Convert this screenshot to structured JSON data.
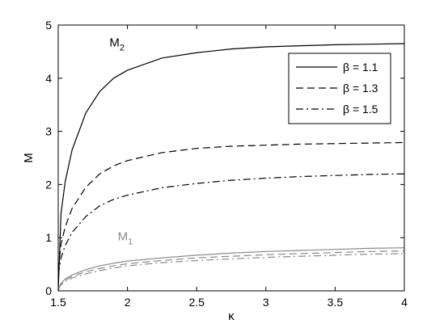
{
  "chart_data": {
    "type": "line",
    "xlabel": "κ",
    "ylabel": "M",
    "xlim": [
      1.5,
      4
    ],
    "ylim": [
      0,
      5
    ],
    "xticks": [
      "1.5",
      "2",
      "2.5",
      "3",
      "3.5",
      "4"
    ],
    "yticks": [
      "0",
      "1",
      "2",
      "3",
      "4",
      "5"
    ],
    "grid": false,
    "legend_position": "top-right",
    "x": [
      1.5,
      1.52,
      1.55,
      1.6,
      1.7,
      1.8,
      1.9,
      2.0,
      2.25,
      2.5,
      2.75,
      3.0,
      3.25,
      3.5,
      3.75,
      4.0
    ],
    "series": [
      {
        "name": "β = 1.1",
        "group": "M2",
        "color": "#000000",
        "dash": "solid",
        "values": [
          0.0,
          1.45,
          2.05,
          2.65,
          3.35,
          3.75,
          4.0,
          4.15,
          4.38,
          4.48,
          4.55,
          4.59,
          4.61,
          4.63,
          4.64,
          4.65
        ]
      },
      {
        "name": "β = 1.3",
        "group": "M2",
        "color": "#000000",
        "dash": "dashed",
        "values": [
          0.4,
          0.87,
          1.2,
          1.55,
          1.95,
          2.2,
          2.35,
          2.45,
          2.6,
          2.68,
          2.72,
          2.74,
          2.76,
          2.77,
          2.78,
          2.79
        ]
      },
      {
        "name": "β = 1.5",
        "group": "M2",
        "color": "#000000",
        "dash": "dashdot",
        "values": [
          0.3,
          0.62,
          0.85,
          1.1,
          1.4,
          1.6,
          1.72,
          1.8,
          1.94,
          2.02,
          2.08,
          2.12,
          2.15,
          2.17,
          2.19,
          2.2
        ]
      },
      {
        "name": "β = 1.1",
        "group": "M1",
        "color": "#8a8a8a",
        "dash": "solid",
        "values": [
          0.0,
          0.14,
          0.22,
          0.3,
          0.4,
          0.47,
          0.52,
          0.56,
          0.62,
          0.67,
          0.71,
          0.74,
          0.76,
          0.78,
          0.8,
          0.81
        ]
      },
      {
        "name": "β = 1.3",
        "group": "M1",
        "color": "#8a8a8a",
        "dash": "dashed",
        "values": [
          0.05,
          0.13,
          0.2,
          0.27,
          0.36,
          0.42,
          0.47,
          0.51,
          0.57,
          0.62,
          0.65,
          0.68,
          0.7,
          0.72,
          0.74,
          0.75
        ]
      },
      {
        "name": "β = 1.5",
        "group": "M1",
        "color": "#8a8a8a",
        "dash": "dashdot",
        "values": [
          0.04,
          0.11,
          0.17,
          0.24,
          0.32,
          0.38,
          0.43,
          0.47,
          0.53,
          0.57,
          0.6,
          0.63,
          0.65,
          0.67,
          0.69,
          0.7
        ]
      }
    ],
    "legend": [
      {
        "label": "β = 1.1",
        "dash": "solid"
      },
      {
        "label": "β = 1.3",
        "dash": "dashed"
      },
      {
        "label": "β = 1.5",
        "dash": "dashdot"
      }
    ],
    "annotations": [
      {
        "text": "M",
        "sub": "2",
        "x": 1.87,
        "y": 4.6,
        "color": "#000000"
      },
      {
        "text": "M",
        "sub": "1",
        "x": 1.93,
        "y": 0.95,
        "color": "#8a8a8a"
      }
    ]
  }
}
